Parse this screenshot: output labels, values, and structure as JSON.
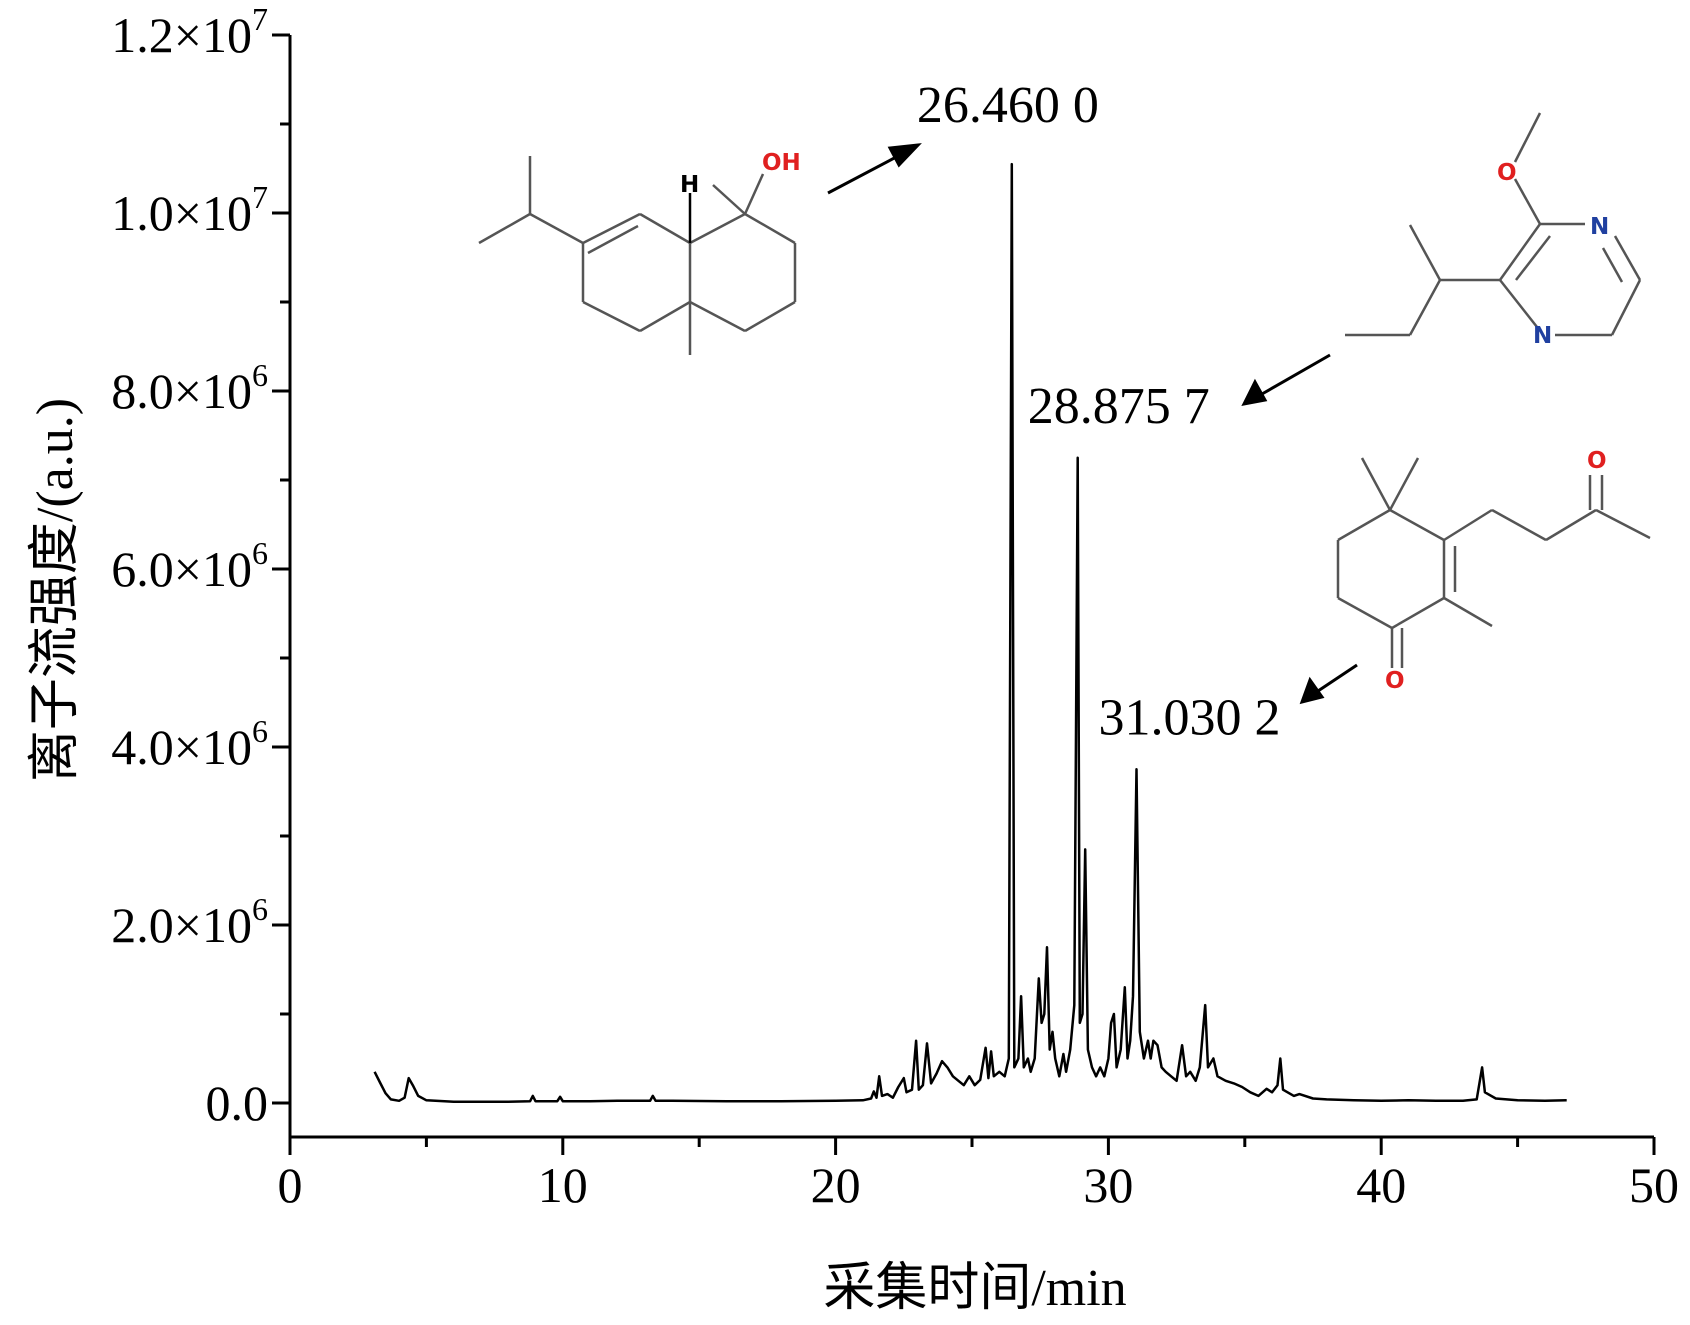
{
  "chart_data": {
    "type": "line",
    "xlabel": "采集时间/min",
    "ylabel": "离子流强度/(a.u.)",
    "xlim": [
      0,
      50
    ],
    "ylim": [
      0,
      12000000
    ],
    "x_ticks": [
      "0",
      "10",
      "20",
      "30",
      "40",
      "50"
    ],
    "y_ticks": [
      {
        "mantissa": "0.0",
        "exponent": ""
      },
      {
        "mantissa": "2.0×10",
        "exponent": "6"
      },
      {
        "mantissa": "4.0×10",
        "exponent": "6"
      },
      {
        "mantissa": "6.0×10",
        "exponent": "6"
      },
      {
        "mantissa": "8.0×10",
        "exponent": "6"
      },
      {
        "mantissa": "1.0×10",
        "exponent": "7"
      },
      {
        "mantissa": "1.2×10",
        "exponent": "7"
      }
    ],
    "y_tick_values": [
      0,
      2000000,
      4000000,
      6000000,
      8000000,
      10000000,
      12000000
    ],
    "grid": false,
    "peak_labels": [
      {
        "text": "26.460 0",
        "x": 26.46,
        "y": 10550000
      },
      {
        "text": "28.875 7",
        "x": 28.8757,
        "y": 7250000
      },
      {
        "text": "31.030 2",
        "x": 31.0302,
        "y": 3750000
      }
    ],
    "baseline": [
      [
        3.1,
        350000
      ],
      [
        3.3,
        230000
      ],
      [
        3.5,
        110000
      ],
      [
        3.7,
        40000
      ],
      [
        4.0,
        25000
      ],
      [
        4.2,
        60000
      ],
      [
        4.35,
        280000
      ],
      [
        4.5,
        200000
      ],
      [
        4.7,
        80000
      ],
      [
        5.0,
        30000
      ],
      [
        6,
        15000
      ],
      [
        8,
        15000
      ],
      [
        8.8,
        20000
      ],
      [
        8.9,
        80000
      ],
      [
        9.0,
        20000
      ],
      [
        9.8,
        20000
      ],
      [
        9.9,
        70000
      ],
      [
        10.0,
        20000
      ],
      [
        11,
        20000
      ],
      [
        12,
        25000
      ],
      [
        13.2,
        25000
      ],
      [
        13.3,
        80000
      ],
      [
        13.4,
        25000
      ],
      [
        14,
        25000
      ],
      [
        16,
        20000
      ],
      [
        18,
        20000
      ],
      [
        20,
        25000
      ],
      [
        21.0,
        30000
      ],
      [
        21.3,
        50000
      ],
      [
        21.4,
        130000
      ],
      [
        21.5,
        60000
      ],
      [
        21.6,
        300000
      ],
      [
        21.7,
        80000
      ],
      [
        21.9,
        100000
      ],
      [
        22.1,
        60000
      ],
      [
        22.3,
        180000
      ],
      [
        22.5,
        280000
      ],
      [
        22.6,
        120000
      ],
      [
        22.8,
        150000
      ],
      [
        22.95,
        700000
      ],
      [
        23.05,
        150000
      ],
      [
        23.2,
        200000
      ],
      [
        23.35,
        670000
      ],
      [
        23.5,
        220000
      ],
      [
        23.7,
        330000
      ],
      [
        23.9,
        470000
      ],
      [
        24.1,
        400000
      ],
      [
        24.3,
        300000
      ],
      [
        24.5,
        250000
      ],
      [
        24.7,
        200000
      ],
      [
        24.9,
        300000
      ],
      [
        25.1,
        200000
      ],
      [
        25.3,
        260000
      ],
      [
        25.5,
        620000
      ],
      [
        25.6,
        280000
      ],
      [
        25.7,
        580000
      ],
      [
        25.8,
        300000
      ],
      [
        26.0,
        350000
      ],
      [
        26.2,
        300000
      ],
      [
        26.35,
        500000
      ],
      [
        26.46,
        10550000
      ],
      [
        26.55,
        400000
      ],
      [
        26.7,
        500000
      ],
      [
        26.8,
        1200000
      ],
      [
        26.9,
        400000
      ],
      [
        27.05,
        500000
      ],
      [
        27.15,
        350000
      ],
      [
        27.3,
        500000
      ],
      [
        27.45,
        1400000
      ],
      [
        27.55,
        900000
      ],
      [
        27.65,
        1000000
      ],
      [
        27.75,
        1750000
      ],
      [
        27.85,
        600000
      ],
      [
        27.95,
        800000
      ],
      [
        28.05,
        500000
      ],
      [
        28.2,
        300000
      ],
      [
        28.35,
        550000
      ],
      [
        28.45,
        350000
      ],
      [
        28.6,
        600000
      ],
      [
        28.75,
        1100000
      ],
      [
        28.8757,
        7250000
      ],
      [
        28.95,
        900000
      ],
      [
        29.05,
        1000000
      ],
      [
        29.15,
        2850000
      ],
      [
        29.25,
        600000
      ],
      [
        29.4,
        400000
      ],
      [
        29.55,
        300000
      ],
      [
        29.7,
        400000
      ],
      [
        29.85,
        300000
      ],
      [
        30.0,
        500000
      ],
      [
        30.1,
        900000
      ],
      [
        30.2,
        1000000
      ],
      [
        30.3,
        400000
      ],
      [
        30.45,
        600000
      ],
      [
        30.6,
        1300000
      ],
      [
        30.7,
        500000
      ],
      [
        30.8,
        700000
      ],
      [
        30.9,
        1200000
      ],
      [
        31.0302,
        3750000
      ],
      [
        31.15,
        800000
      ],
      [
        31.3,
        500000
      ],
      [
        31.45,
        700000
      ],
      [
        31.55,
        500000
      ],
      [
        31.65,
        700000
      ],
      [
        31.8,
        650000
      ],
      [
        31.95,
        400000
      ],
      [
        32.1,
        350000
      ],
      [
        32.3,
        300000
      ],
      [
        32.5,
        250000
      ],
      [
        32.7,
        650000
      ],
      [
        32.85,
        300000
      ],
      [
        33.0,
        350000
      ],
      [
        33.2,
        250000
      ],
      [
        33.35,
        400000
      ],
      [
        33.55,
        1100000
      ],
      [
        33.65,
        400000
      ],
      [
        33.85,
        500000
      ],
      [
        34.0,
        300000
      ],
      [
        34.3,
        250000
      ],
      [
        34.6,
        220000
      ],
      [
        34.9,
        180000
      ],
      [
        35.2,
        120000
      ],
      [
        35.5,
        80000
      ],
      [
        35.8,
        160000
      ],
      [
        36.0,
        120000
      ],
      [
        36.2,
        200000
      ],
      [
        36.3,
        500000
      ],
      [
        36.4,
        150000
      ],
      [
        36.8,
        80000
      ],
      [
        37.0,
        100000
      ],
      [
        37.5,
        50000
      ],
      [
        38,
        40000
      ],
      [
        39,
        30000
      ],
      [
        40,
        25000
      ],
      [
        41,
        30000
      ],
      [
        42,
        25000
      ],
      [
        43.0,
        25000
      ],
      [
        43.5,
        40000
      ],
      [
        43.6,
        220000
      ],
      [
        43.7,
        400000
      ],
      [
        43.8,
        120000
      ],
      [
        44.2,
        50000
      ],
      [
        45,
        30000
      ],
      [
        46,
        25000
      ],
      [
        46.8,
        30000
      ]
    ]
  },
  "molecules": [
    {
      "atom_labels": [
        "H",
        "OH"
      ]
    },
    {
      "atom_labels": [
        "O",
        "N",
        "N"
      ]
    },
    {
      "atom_labels": [
        "O",
        "O"
      ]
    }
  ]
}
